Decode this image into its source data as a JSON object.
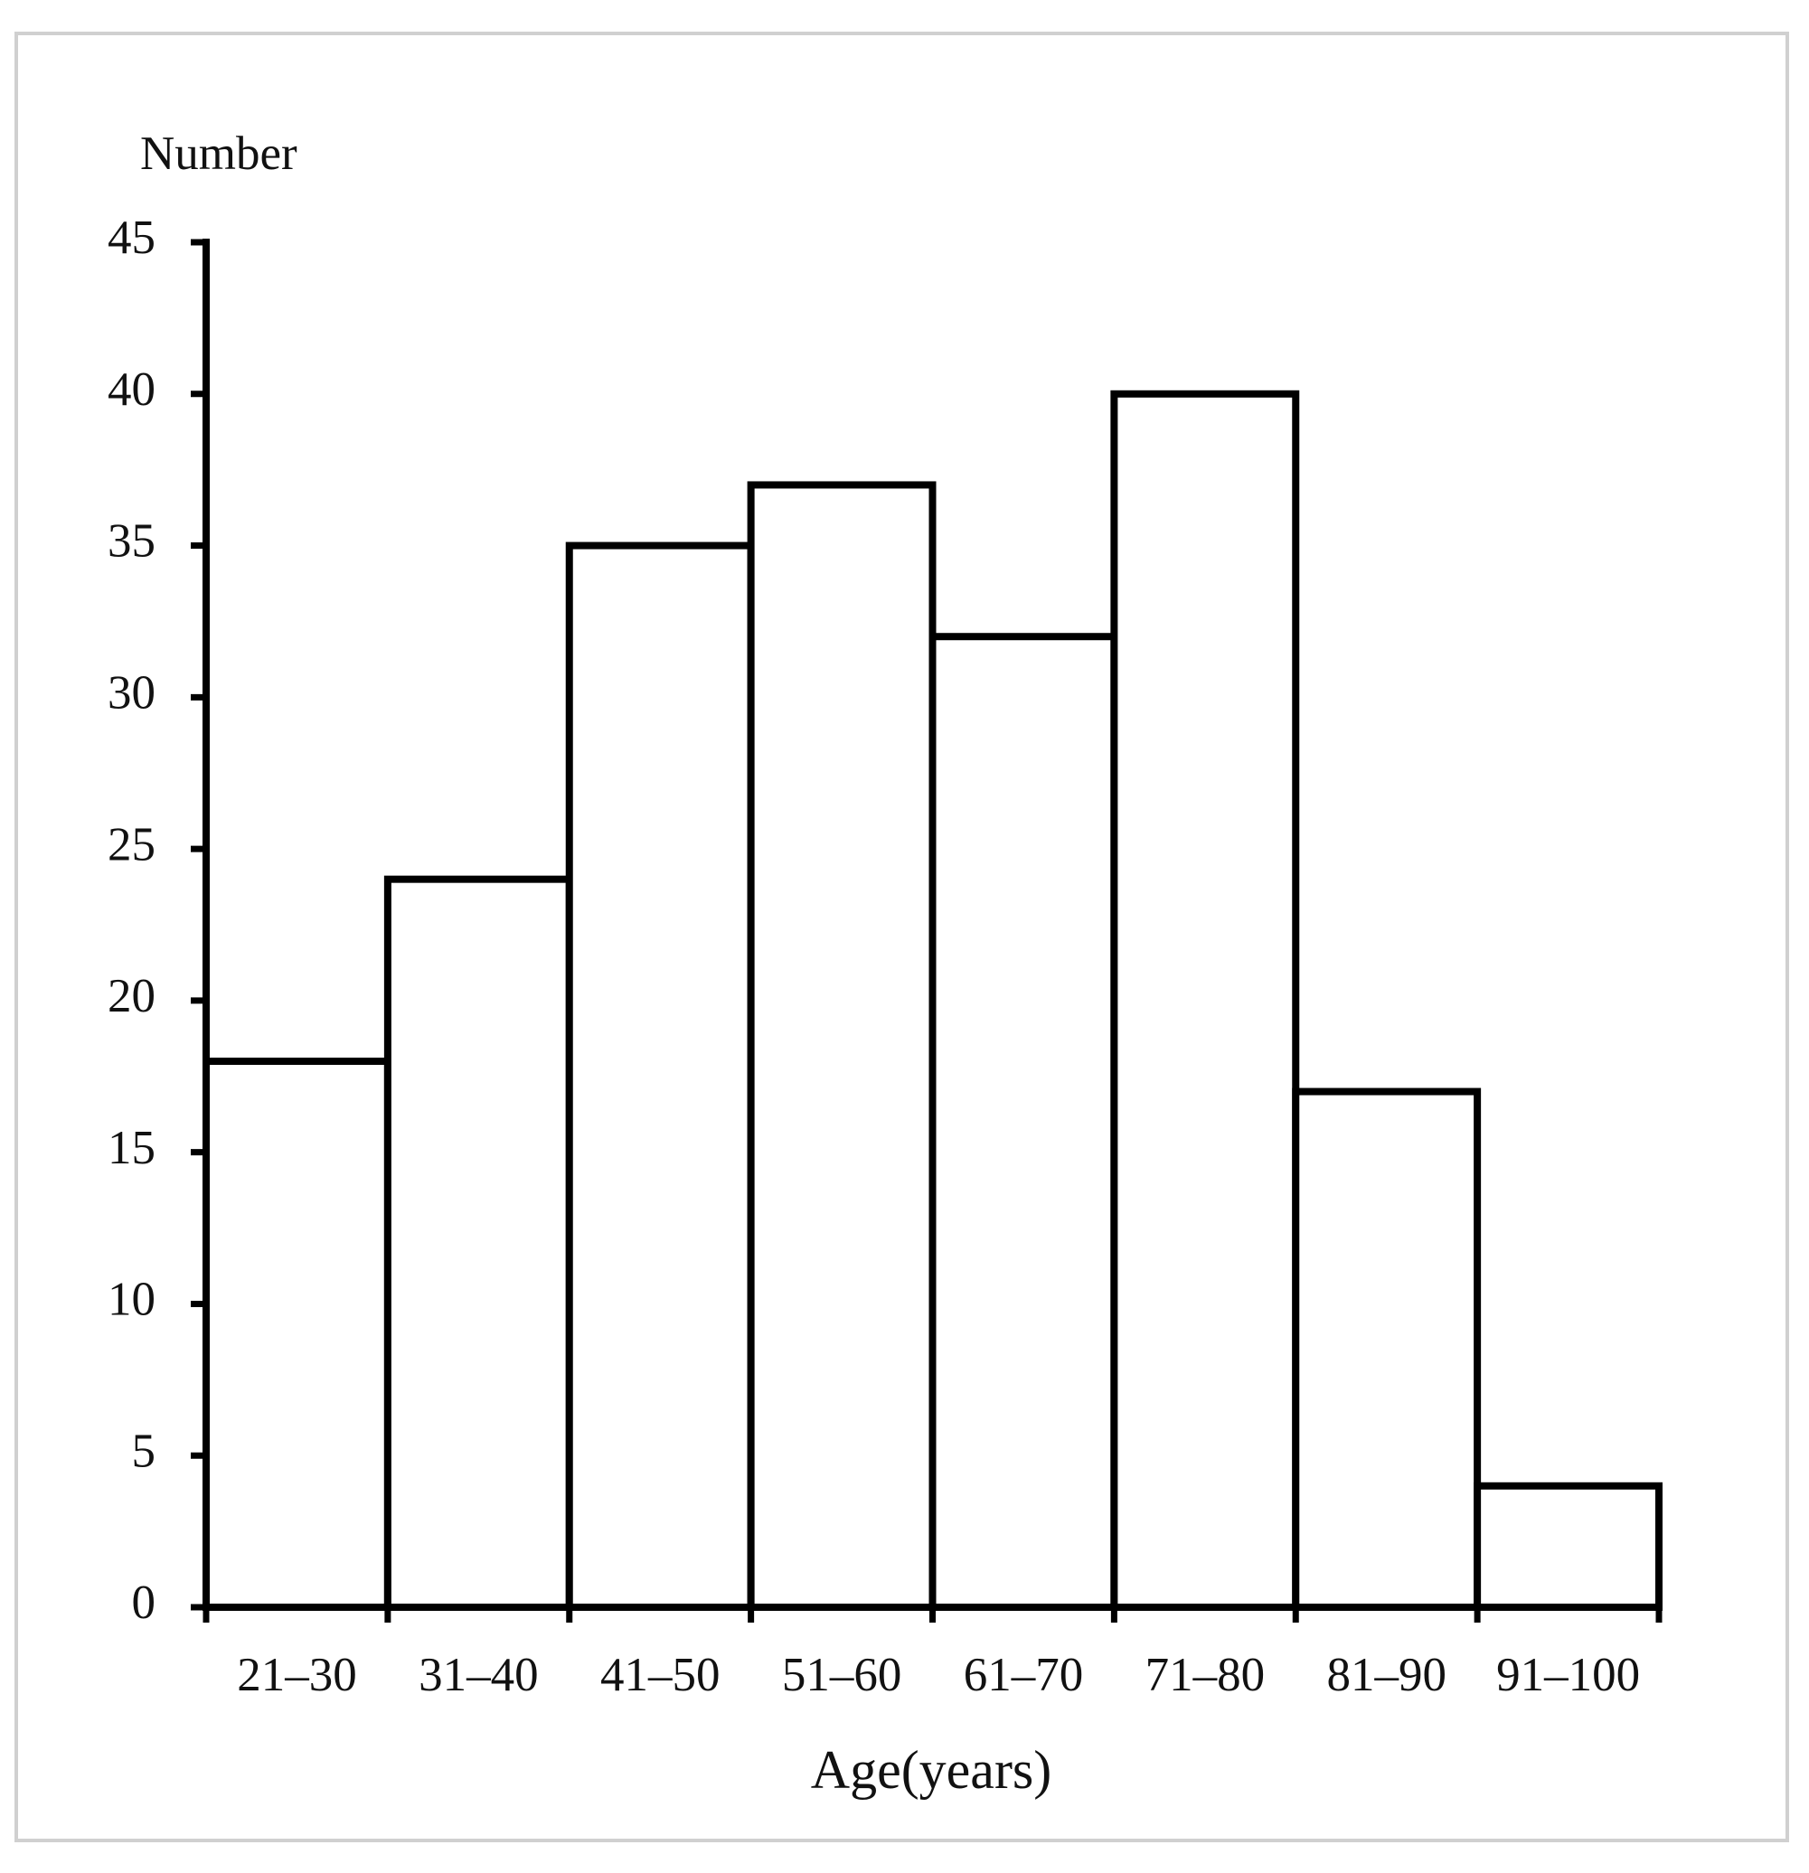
{
  "chart_data": {
    "type": "bar",
    "ylabel": "Number",
    "xlabel": "Age(years)",
    "categories": [
      "21–30",
      "31–40",
      "41–50",
      "51–60",
      "61–70",
      "71–80",
      "81–90",
      "91–100"
    ],
    "values": [
      18,
      24,
      35,
      37,
      32,
      40,
      17,
      4
    ],
    "color": "#ffffff",
    "edgecolor": "#000000",
    "ylim": [
      0,
      45
    ],
    "yticks": [
      0,
      5,
      10,
      15,
      20,
      25,
      30,
      35,
      40,
      45
    ],
    "grid": false
  }
}
